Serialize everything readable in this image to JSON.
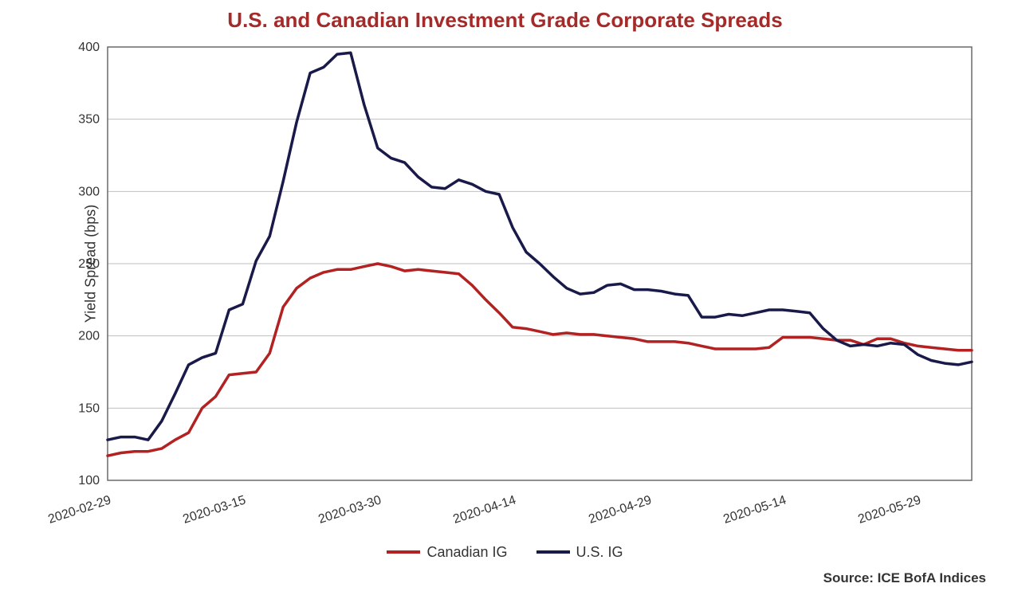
{
  "chart": {
    "type": "line",
    "title": "U.S. and Canadian Investment Grade Corporate Spreads",
    "title_color": "#a52a2a",
    "title_fontsize": 26,
    "ylabel": "Yield Spread (bps)",
    "ylabel_fontsize": 18,
    "axis_label_color": "#333333",
    "axis_tick_fontsize": 16,
    "ylim": [
      100,
      400
    ],
    "ytick_step": 50,
    "yticks": [
      100,
      150,
      200,
      250,
      300,
      350,
      400
    ],
    "xtick_labels": [
      "2020-02-29",
      "2020-03-15",
      "2020-03-30",
      "2020-04-14",
      "2020-04-29",
      "2020-05-14",
      "2020-05-29"
    ],
    "xtick_indices": [
      0,
      10,
      20,
      30,
      40,
      50,
      60
    ],
    "x_count": 65,
    "plot_border_color": "#6a6a6a",
    "grid_color": "#bfbfbf",
    "background_color": "#ffffff",
    "line_width": 3.5,
    "series": [
      {
        "name": "Canadian IG",
        "color": "#b22222",
        "values": [
          117,
          119,
          120,
          120,
          122,
          128,
          133,
          150,
          158,
          173,
          174,
          175,
          188,
          220,
          233,
          240,
          244,
          246,
          246,
          248,
          250,
          248,
          245,
          246,
          245,
          244,
          243,
          235,
          225,
          216,
          206,
          205,
          203,
          201,
          202,
          201,
          201,
          200,
          199,
          198,
          196,
          196,
          196,
          195,
          193,
          191,
          191,
          191,
          191,
          192,
          199,
          199,
          199,
          198,
          197,
          197,
          194,
          198,
          198,
          195,
          193,
          192,
          191,
          190,
          190
        ]
      },
      {
        "name": "U.S. IG",
        "color": "#1a1a4a",
        "values": [
          128,
          130,
          130,
          128,
          141,
          160,
          180,
          185,
          188,
          218,
          222,
          252,
          269,
          307,
          348,
          382,
          386,
          395,
          396,
          360,
          330,
          323,
          320,
          310,
          303,
          302,
          308,
          305,
          300,
          298,
          275,
          258,
          250,
          241,
          233,
          229,
          230,
          235,
          236,
          232,
          232,
          231,
          229,
          228,
          213,
          213,
          215,
          214,
          216,
          218,
          218,
          217,
          216,
          205,
          197,
          193,
          194,
          193,
          195,
          194,
          187,
          183,
          181,
          180,
          182
        ]
      }
    ],
    "legend_fontsize": 18,
    "source_label": "Source: ICE BofA Indices",
    "source_fontsize": 17
  }
}
